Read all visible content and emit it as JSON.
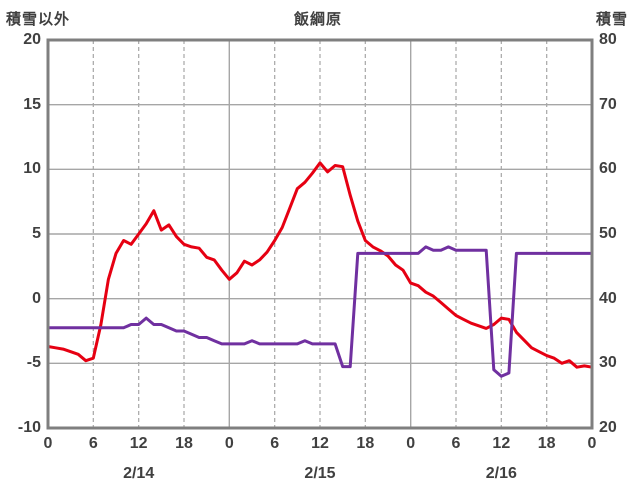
{
  "chart_data": {
    "type": "line",
    "title": "飯綱原",
    "left_axis": {
      "title": "積雪以外",
      "max": 20,
      "min": -10,
      "ticks": [
        20,
        15,
        10,
        5,
        0,
        -5,
        -10
      ]
    },
    "right_axis": {
      "title": "積雪",
      "max": 80,
      "min": 20,
      "ticks": [
        80,
        70,
        60,
        50,
        40,
        30,
        20
      ]
    },
    "x_total_hours": 72,
    "x_start_hour": 0,
    "x_interval_hours": 1,
    "x_ticks": [
      {
        "hour": 0,
        "label": "0"
      },
      {
        "hour": 6,
        "label": "6"
      },
      {
        "hour": 12,
        "label": "12"
      },
      {
        "hour": 18,
        "label": "18"
      },
      {
        "hour": 24,
        "label": "0"
      },
      {
        "hour": 30,
        "label": "6"
      },
      {
        "hour": 36,
        "label": "12"
      },
      {
        "hour": 42,
        "label": "18"
      },
      {
        "hour": 48,
        "label": "0"
      },
      {
        "hour": 54,
        "label": "6"
      },
      {
        "hour": 60,
        "label": "12"
      },
      {
        "hour": 66,
        "label": "18"
      },
      {
        "hour": 72,
        "label": "0"
      }
    ],
    "day_labels": [
      {
        "hour": 12,
        "label": "2/14"
      },
      {
        "hour": 36,
        "label": "2/15"
      },
      {
        "hour": 60,
        "label": "2/16"
      }
    ],
    "grid": {
      "hlines_left_values": [
        15,
        10,
        5,
        0,
        -5
      ],
      "vlines_solid_hours": [
        24,
        48
      ],
      "vlines_dashed_hours": [
        6,
        12,
        18,
        30,
        36,
        42,
        54,
        60,
        66
      ]
    },
    "colors": {
      "grid": "#a6a6a6",
      "border": "#7f7f7f",
      "red": "#e60012",
      "purple": "#7030a0",
      "text": "#404040"
    },
    "series": [
      {
        "name": "red-series",
        "axis": "left",
        "color": "#e60012",
        "values": [
          -3.7,
          -3.8,
          -3.9,
          -4.1,
          -4.3,
          -4.8,
          -4.6,
          -2.0,
          1.5,
          3.5,
          4.5,
          4.2,
          5.0,
          5.8,
          6.8,
          5.3,
          5.7,
          4.8,
          4.2,
          4.0,
          3.9,
          3.2,
          3.0,
          2.2,
          1.5,
          2.0,
          2.9,
          2.6,
          3.0,
          3.6,
          4.5,
          5.5,
          7.0,
          8.5,
          9.0,
          9.7,
          10.5,
          9.8,
          10.3,
          10.2,
          8.0,
          6.0,
          4.5,
          4.0,
          3.7,
          3.3,
          2.6,
          2.2,
          1.2,
          1.0,
          0.5,
          0.2,
          -0.3,
          -0.8,
          -1.3,
          -1.6,
          -1.9,
          -2.1,
          -2.3,
          -2.0,
          -1.5,
          -1.6,
          -2.6,
          -3.2,
          -3.8,
          -4.1,
          -4.4,
          -4.6,
          -5.0,
          -4.8,
          -5.3,
          -5.2,
          -5.3
        ]
      },
      {
        "name": "purple-series",
        "axis": "right",
        "color": "#7030a0",
        "values": [
          35.5,
          35.5,
          35.5,
          35.5,
          35.5,
          35.5,
          35.5,
          35.5,
          35.5,
          35.5,
          35.5,
          36,
          36,
          37,
          36,
          36,
          35.5,
          35,
          35,
          34.5,
          34,
          34,
          33.5,
          33,
          33,
          33,
          33,
          33.5,
          33,
          33,
          33,
          33,
          33,
          33,
          33.5,
          33,
          33,
          33,
          33,
          29.5,
          29.5,
          47,
          47,
          47,
          47,
          47,
          47,
          47,
          47,
          47,
          48,
          47.5,
          47.5,
          48,
          47.5,
          47.5,
          47.5,
          47.5,
          47.5,
          29,
          28,
          28.5,
          47,
          47,
          47,
          47,
          47,
          47,
          47,
          47,
          47,
          47,
          47
        ]
      }
    ]
  }
}
